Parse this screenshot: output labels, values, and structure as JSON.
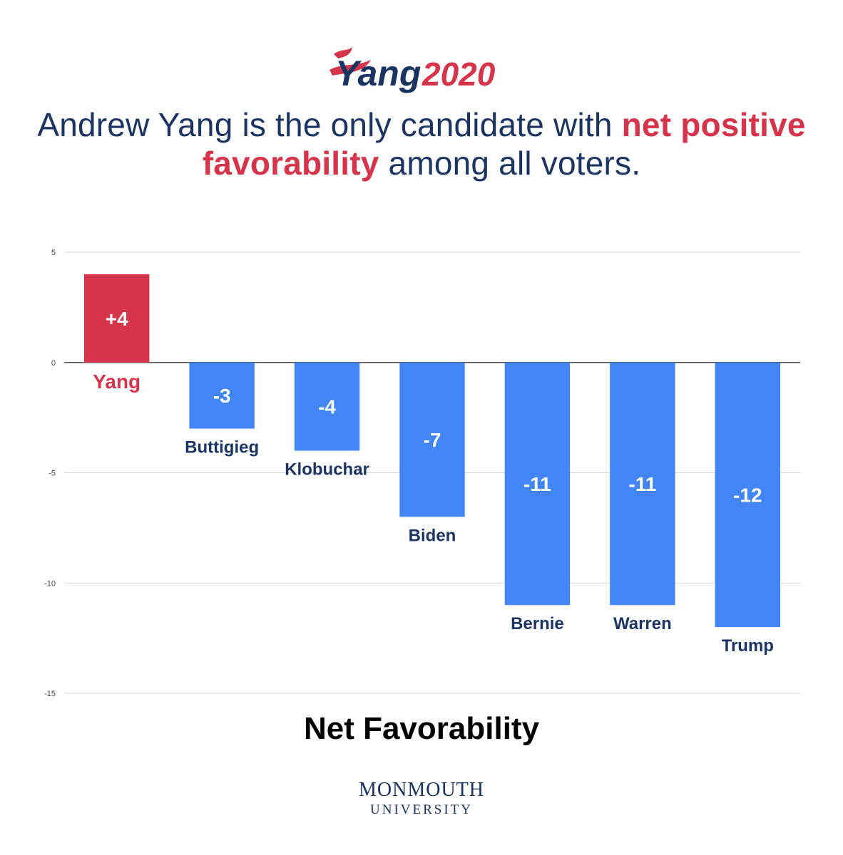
{
  "logo": {
    "text": "Yang",
    "year": "2020",
    "colors": {
      "navy": "#1c3461",
      "red": "#d6344a"
    }
  },
  "headline": {
    "part1": "Andrew Yang is the only candidate with ",
    "highlight": "net positive favorability",
    "part2": " among all voters."
  },
  "source": {
    "line1": "MONMOUTH",
    "line2": "UNIVERSITY"
  },
  "chart_data": {
    "type": "bar",
    "categories": [
      "Yang",
      "Buttigieg",
      "Klobuchar",
      "Biden",
      "Bernie",
      "Warren",
      "Trump"
    ],
    "values": [
      4,
      -3,
      -4,
      -7,
      -11,
      -11,
      -12
    ],
    "value_labels": [
      "+4",
      "-3",
      "-4",
      "-7",
      "-11",
      "-11",
      "-12"
    ],
    "xlabel": "Net Favorability",
    "ylabel": "",
    "ylim": [
      -15,
      5
    ],
    "yticks": [
      5,
      0,
      -5,
      -10,
      -15
    ],
    "ytick_labels": [
      "5",
      "0",
      "-5",
      "-10",
      "-15"
    ],
    "grid": true,
    "colors": {
      "positive": "#d6344a",
      "negative": "#4285f4",
      "category_negative": "#1c3461",
      "category_positive": "#d6344a",
      "value_label": "#ffffff"
    }
  }
}
